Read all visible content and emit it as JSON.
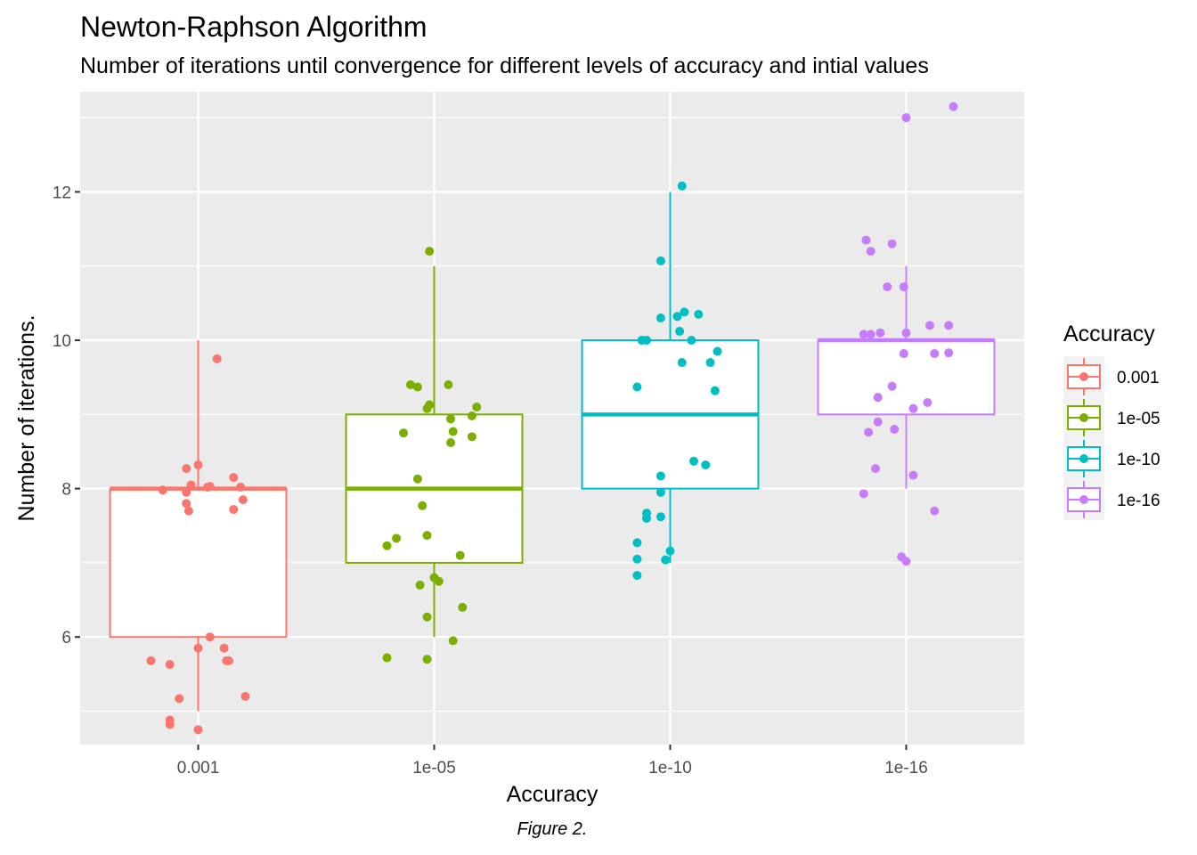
{
  "chart_data": {
    "type": "boxplot",
    "title": "Newton-Raphson Algorithm",
    "subtitle": "Number of iterations until convergence for different levels of accuracy and intial values",
    "caption": "Figure 2.",
    "xlabel": "Accuracy",
    "ylabel": "Number of iterations.",
    "categories": [
      "0.001",
      "1e-05",
      "1e-10",
      "1e-16"
    ],
    "ylim": [
      4.55,
      13.35
    ],
    "yticks": [
      6,
      8,
      10,
      12
    ],
    "grid": true,
    "legend": {
      "title": "Accuracy",
      "placement": "right",
      "entries": [
        "0.001",
        "1e-05",
        "1e-10",
        "1e-16"
      ]
    },
    "colors": {
      "0.001": "#F8766D",
      "1e-05": "#7CAE00",
      "1e-10": "#00BFC4",
      "1e-16": "#C77CFF",
      "panel": "#EBEBEB",
      "grid": "#FFFFFF"
    },
    "series": [
      {
        "name": "0.001",
        "box": {
          "lower_whisker": 5,
          "q1": 6,
          "median": 8,
          "q3": 8,
          "upper_whisker": 10
        },
        "points": [
          [
            -0.12,
            4.88
          ],
          [
            -0.12,
            4.82
          ],
          [
            0.0,
            4.75
          ],
          [
            -0.08,
            5.17
          ],
          [
            0.2,
            5.2
          ],
          [
            -0.2,
            5.68
          ],
          [
            -0.12,
            5.63
          ],
          [
            0.12,
            5.68
          ],
          [
            0.13,
            5.68
          ],
          [
            0.11,
            5.85
          ],
          [
            0.0,
            5.85
          ],
          [
            0.05,
            6.0
          ],
          [
            -0.05,
            7.8
          ],
          [
            -0.05,
            7.95
          ],
          [
            -0.15,
            7.98
          ],
          [
            -0.05,
            8.27
          ],
          [
            0.0,
            8.32
          ],
          [
            -0.03,
            8.05
          ],
          [
            0.04,
            8.02
          ],
          [
            0.05,
            8.03
          ],
          [
            0.15,
            8.15
          ],
          [
            0.18,
            8.02
          ],
          [
            0.15,
            7.72
          ],
          [
            0.19,
            7.85
          ],
          [
            -0.04,
            7.7
          ],
          [
            0.08,
            9.75
          ]
        ]
      },
      {
        "name": "1e-05",
        "box": {
          "lower_whisker": 6,
          "q1": 7,
          "median": 8,
          "q3": 9,
          "upper_whisker": 11
        },
        "points": [
          [
            -0.2,
            5.72
          ],
          [
            -0.03,
            5.7
          ],
          [
            0.08,
            5.95
          ],
          [
            -0.03,
            6.27
          ],
          [
            0.12,
            6.4
          ],
          [
            -0.06,
            6.7
          ],
          [
            0.0,
            6.8
          ],
          [
            0.02,
            6.75
          ],
          [
            -0.2,
            7.23
          ],
          [
            -0.16,
            7.33
          ],
          [
            -0.03,
            7.37
          ],
          [
            0.11,
            7.1
          ],
          [
            -0.05,
            7.77
          ],
          [
            -0.07,
            8.13
          ],
          [
            0.07,
            8.62
          ],
          [
            0.08,
            8.77
          ],
          [
            0.16,
            8.7
          ],
          [
            -0.13,
            8.75
          ],
          [
            0.07,
            8.94
          ],
          [
            0.16,
            8.98
          ],
          [
            -0.03,
            9.08
          ],
          [
            -0.02,
            9.13
          ],
          [
            0.18,
            9.1
          ],
          [
            -0.1,
            9.4
          ],
          [
            -0.07,
            9.37
          ],
          [
            0.06,
            9.4
          ],
          [
            -0.02,
            11.2
          ]
        ]
      },
      {
        "name": "1e-10",
        "box": {
          "lower_whisker": 7,
          "q1": 8,
          "median": 9,
          "q3": 10,
          "upper_whisker": 12
        },
        "points": [
          [
            -0.14,
            6.83
          ],
          [
            -0.14,
            7.05
          ],
          [
            -0.14,
            7.27
          ],
          [
            -0.02,
            7.04
          ],
          [
            0.0,
            7.16
          ],
          [
            -0.1,
            7.6
          ],
          [
            -0.1,
            7.67
          ],
          [
            -0.04,
            7.62
          ],
          [
            -0.04,
            7.95
          ],
          [
            -0.04,
            8.17
          ],
          [
            0.1,
            8.37
          ],
          [
            0.15,
            8.32
          ],
          [
            -0.14,
            9.37
          ],
          [
            0.19,
            9.32
          ],
          [
            0.05,
            9.7
          ],
          [
            0.17,
            9.7
          ],
          [
            0.2,
            9.85
          ],
          [
            -0.12,
            10.0
          ],
          [
            -0.1,
            10.0
          ],
          [
            0.09,
            10.0
          ],
          [
            0.04,
            10.12
          ],
          [
            -0.04,
            10.3
          ],
          [
            0.03,
            10.32
          ],
          [
            0.06,
            10.38
          ],
          [
            0.12,
            10.35
          ],
          [
            -0.04,
            11.07
          ],
          [
            0.05,
            12.08
          ]
        ]
      },
      {
        "name": "1e-16",
        "box": {
          "lower_whisker": 8,
          "q1": 9,
          "median": 10,
          "q3": 10,
          "upper_whisker": 11
        },
        "points": [
          [
            0.0,
            7.02
          ],
          [
            -0.02,
            7.08
          ],
          [
            0.12,
            7.7
          ],
          [
            -0.18,
            7.93
          ],
          [
            -0.13,
            8.27
          ],
          [
            0.03,
            8.18
          ],
          [
            -0.16,
            8.76
          ],
          [
            -0.05,
            8.8
          ],
          [
            -0.12,
            8.9
          ],
          [
            0.03,
            9.08
          ],
          [
            0.09,
            9.16
          ],
          [
            -0.12,
            9.23
          ],
          [
            -0.06,
            9.38
          ],
          [
            -0.01,
            9.82
          ],
          [
            0.12,
            9.82
          ],
          [
            0.18,
            9.83
          ],
          [
            -0.18,
            10.08
          ],
          [
            -0.15,
            10.08
          ],
          [
            -0.11,
            10.1
          ],
          [
            0.0,
            10.1
          ],
          [
            0.1,
            10.2
          ],
          [
            0.18,
            10.2
          ],
          [
            -0.08,
            10.72
          ],
          [
            -0.01,
            10.72
          ],
          [
            -0.17,
            11.35
          ],
          [
            -0.15,
            11.2
          ],
          [
            -0.06,
            11.3
          ],
          [
            0.0,
            13.0
          ],
          [
            0.2,
            13.15
          ]
        ]
      }
    ]
  }
}
